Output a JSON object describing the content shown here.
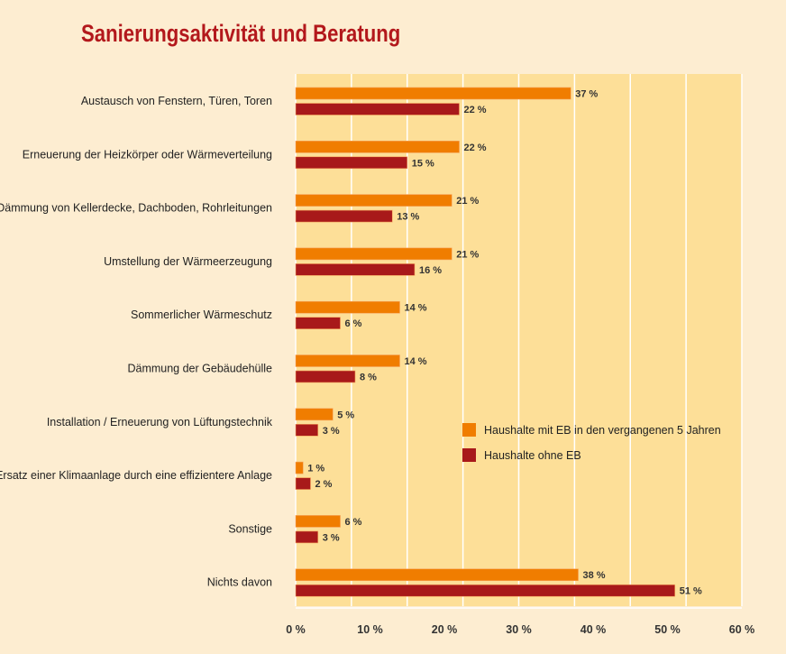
{
  "chart_data": {
    "type": "bar",
    "orientation": "horizontal",
    "title": "Sanierungsaktivität und Beratung",
    "categories": [
      "Austausch von Fenstern, Türen, Toren",
      "Erneuerung der Heizkörper oder Wärmeverteilung",
      "Dämmung von Kellerdecke, Dachboden, Rohrleitungen",
      "Umstellung der Wärmeerzeugung",
      "Sommerlicher Wärmeschutz",
      "Dämmung der Gebäudehülle",
      "Installation / Erneuerung von Lüftungstechnik",
      "Ersatz einer Klimaanlage durch eine effizientere Anlage",
      "Sonstige",
      "Nichts davon"
    ],
    "series": [
      {
        "name": "Haushalte mit EB in den vergangenen 5 Jahren",
        "color": "#f07d00",
        "values": [
          37,
          22,
          21,
          21,
          14,
          14,
          5,
          1,
          6,
          38
        ]
      },
      {
        "name": "Haushalte ohne EB",
        "color": "#a8191a",
        "values": [
          22,
          15,
          13,
          16,
          6,
          8,
          3,
          2,
          3,
          51
        ]
      }
    ],
    "xlim": [
      0,
      60
    ],
    "xticks": [
      "0 %",
      "10 %",
      "20 %",
      "30 %",
      "40 %",
      "50 %",
      "60 %"
    ],
    "value_suffix": " %",
    "grid": true,
    "legend": "center-right",
    "plot_background": "#fddf98"
  }
}
